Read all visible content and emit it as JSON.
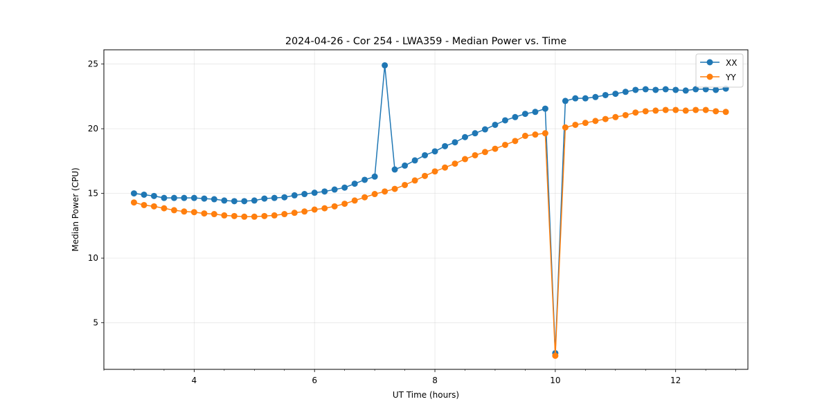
{
  "chart_data": {
    "type": "line",
    "title": "2024-04-26 - Cor 254 - LWA359 - Median Power vs. Time",
    "xlabel": "UT Time (hours)",
    "ylabel": "Median Power (CPU)",
    "xlim": [
      2.5,
      13.2
    ],
    "ylim": [
      1.4,
      26.1
    ],
    "xticks": [
      4,
      6,
      8,
      10,
      12
    ],
    "yticks": [
      5,
      10,
      15,
      20,
      25
    ],
    "grid": true,
    "legend_position": "top-right",
    "x": [
      3.0,
      3.167,
      3.333,
      3.5,
      3.667,
      3.833,
      4.0,
      4.167,
      4.333,
      4.5,
      4.667,
      4.833,
      5.0,
      5.167,
      5.333,
      5.5,
      5.667,
      5.833,
      6.0,
      6.167,
      6.333,
      6.5,
      6.667,
      6.833,
      7.0,
      7.167,
      7.333,
      7.5,
      7.667,
      7.833,
      8.0,
      8.167,
      8.333,
      8.5,
      8.667,
      8.833,
      9.0,
      9.167,
      9.333,
      9.5,
      9.667,
      9.833,
      10.0,
      10.167,
      10.333,
      10.5,
      10.667,
      10.833,
      11.0,
      11.167,
      11.333,
      11.5,
      11.667,
      11.833,
      12.0,
      12.167,
      12.333,
      12.5,
      12.667,
      12.833
    ],
    "series": [
      {
        "name": "XX",
        "color": "#1f77b4",
        "values": [
          15.0,
          14.9,
          14.8,
          14.65,
          14.65,
          14.65,
          14.65,
          14.6,
          14.55,
          14.45,
          14.4,
          14.4,
          14.45,
          14.6,
          14.65,
          14.7,
          14.85,
          14.95,
          15.05,
          15.15,
          15.3,
          15.45,
          15.75,
          16.05,
          16.3,
          24.9,
          16.85,
          17.15,
          17.55,
          17.95,
          18.25,
          18.65,
          18.95,
          19.35,
          19.65,
          19.95,
          20.3,
          20.65,
          20.9,
          21.15,
          21.3,
          21.55,
          2.65,
          22.15,
          22.35,
          22.35,
          22.45,
          22.6,
          22.7,
          22.85,
          23.0,
          23.05,
          23.0,
          23.05,
          23.0,
          22.95,
          23.05,
          23.05,
          23.0,
          23.1
        ]
      },
      {
        "name": "YY",
        "color": "#ff7f0e",
        "values": [
          14.3,
          14.1,
          14.0,
          13.85,
          13.7,
          13.6,
          13.55,
          13.45,
          13.4,
          13.3,
          13.25,
          13.2,
          13.2,
          13.25,
          13.3,
          13.4,
          13.5,
          13.6,
          13.75,
          13.85,
          14.0,
          14.2,
          14.45,
          14.7,
          14.95,
          15.15,
          15.35,
          15.65,
          16.0,
          16.35,
          16.7,
          17.0,
          17.3,
          17.65,
          17.95,
          18.2,
          18.45,
          18.75,
          19.05,
          19.45,
          19.55,
          19.65,
          2.45,
          20.1,
          20.3,
          20.45,
          20.6,
          20.75,
          20.9,
          21.05,
          21.25,
          21.35,
          21.4,
          21.45,
          21.45,
          21.4,
          21.45,
          21.45,
          21.35,
          21.3
        ]
      }
    ]
  }
}
